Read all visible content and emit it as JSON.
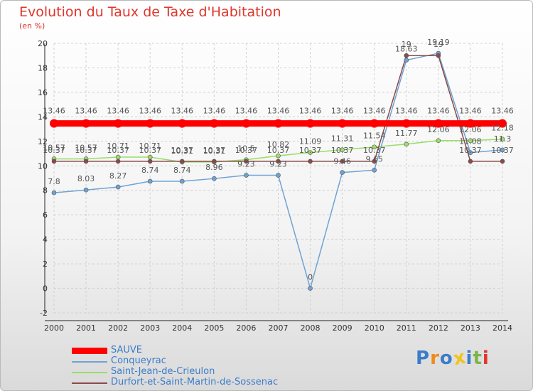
{
  "title": "Evolution du Taux de Taxe d'Habitation",
  "subtitle": "(en %)",
  "logo": {
    "letters": [
      "P",
      "r",
      "o",
      "x",
      "i",
      "t",
      "i"
    ],
    "colors": [
      "#3b7dc8",
      "#f08a1c",
      "#3b7dc8",
      "#f0c419",
      "#3b7dc8",
      "#7ab648",
      "#e0352b"
    ]
  },
  "chart_data": {
    "type": "line",
    "x": [
      "2000",
      "2001",
      "2002",
      "2003",
      "2004",
      "2005",
      "2006",
      "2007",
      "2008",
      "2009",
      "2010",
      "2011",
      "2012",
      "2013",
      "2014"
    ],
    "ylim": [
      -2,
      20
    ],
    "yticks": [
      -2,
      0,
      2,
      4,
      6,
      8,
      10,
      12,
      14,
      16,
      18,
      20
    ],
    "grid": true,
    "legend_position": "bottom",
    "series": [
      {
        "name": "SAUVE",
        "color": "#ff0000",
        "values": [
          13.46,
          13.46,
          13.46,
          13.46,
          13.46,
          13.46,
          13.46,
          13.46,
          13.46,
          13.46,
          13.46,
          13.46,
          13.46,
          13.46,
          13.46
        ],
        "labels": [
          "13.46",
          "13.46",
          "13.46",
          "13.46",
          "13.46",
          "13.46",
          "13.46",
          "13.46",
          "13.46",
          "13.46",
          "13.46",
          "13.46",
          "13.46",
          "13.46",
          "13.46"
        ]
      },
      {
        "name": "Conqueyrac",
        "color": "#6fa3d3",
        "values": [
          7.8,
          8.03,
          8.27,
          8.74,
          8.74,
          8.96,
          9.23,
          9.23,
          0,
          9.46,
          9.65,
          18.63,
          19.19,
          11.08,
          11.3
        ],
        "labels": [
          "7.8",
          "8.03",
          "8.27",
          "8.74",
          "8.74",
          "8.96",
          "9.23",
          "9.23",
          "0",
          "9.46",
          "9.65",
          "18.63",
          "19.19",
          "11.08",
          "11.3"
        ]
      },
      {
        "name": "Saint-Jean-de-Crieulon",
        "color": "#99dd66",
        "values": [
          10.57,
          10.57,
          10.71,
          10.71,
          10.31,
          10.31,
          10.5,
          10.82,
          11.09,
          11.31,
          11.54,
          11.77,
          12.06,
          12.06,
          12.18
        ],
        "labels": [
          "10.57",
          "10.57",
          "10.71",
          "10.71",
          "10.31",
          "10.31",
          "10.5",
          "10.82",
          "11.09",
          "11.31",
          "11.54",
          "11.77",
          "12.06",
          "12.06",
          "12.18"
        ]
      },
      {
        "name": "Durfort-et-Saint-Martin-de-Sossenac",
        "color": "#8b4a4a",
        "values": [
          10.37,
          10.37,
          10.37,
          10.37,
          10.37,
          10.37,
          10.37,
          10.37,
          10.37,
          10.37,
          10.37,
          19,
          19,
          10.37,
          10.37
        ],
        "labels": [
          "10.37",
          "10.37",
          "10.37",
          "10.37",
          "10.37",
          "10.37",
          "10.37",
          "10.37",
          "10.37",
          "10.37",
          "10.37",
          "19",
          "19",
          "10.37",
          "10.37"
        ]
      }
    ]
  }
}
